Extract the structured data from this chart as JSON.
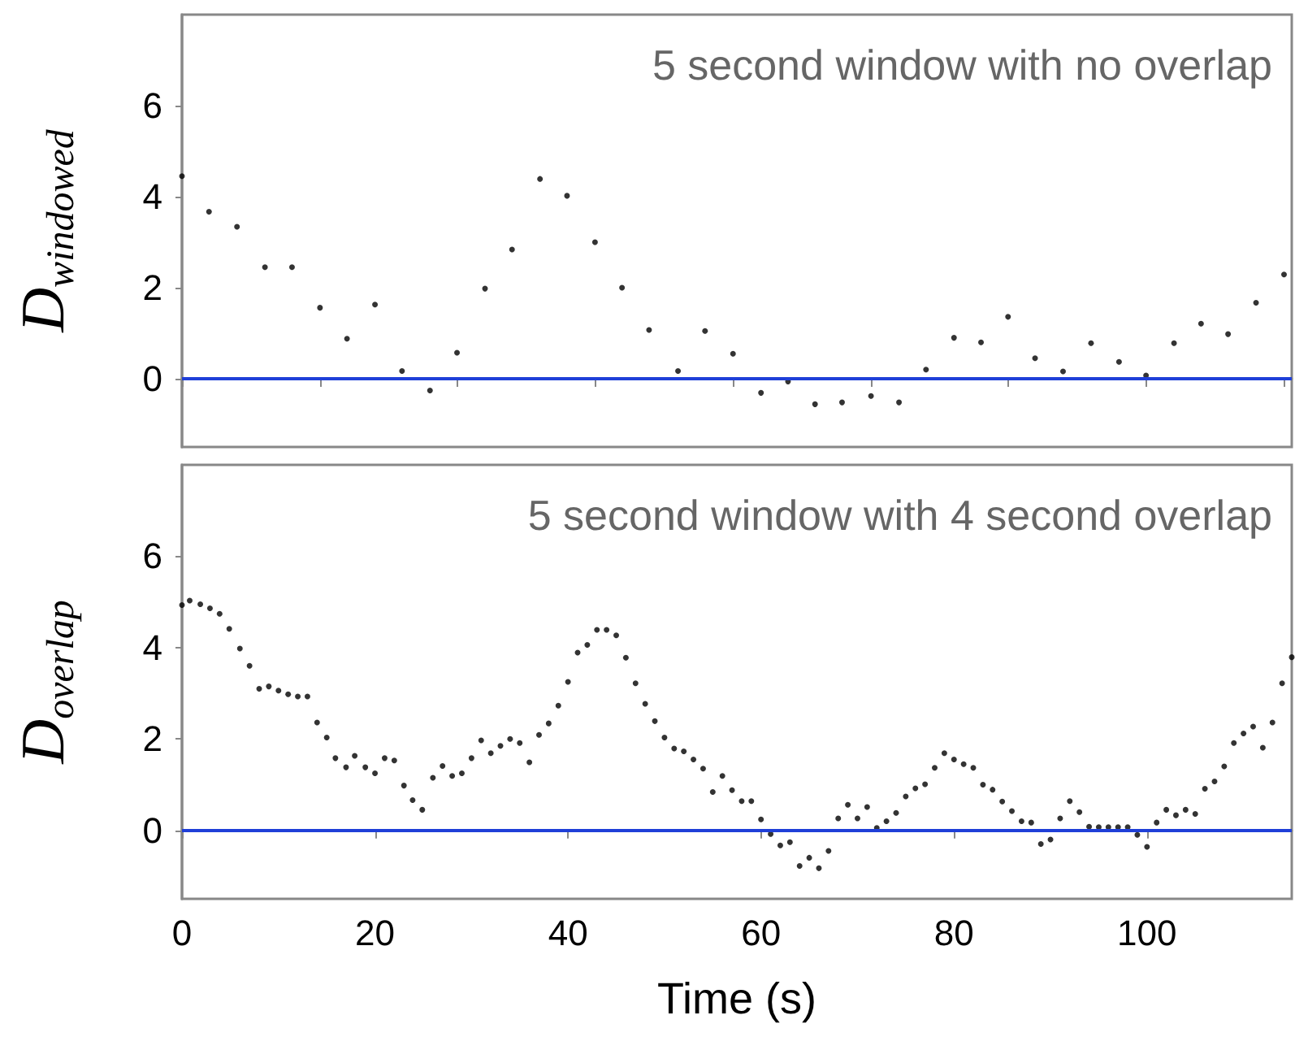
{
  "chart_data": [
    {
      "type": "scatter",
      "ylabel": "D$_{windowed}$",
      "annotations": [
        "5 second window with no overlap"
      ],
      "xlim": [
        0,
        115
      ],
      "xticks": [
        {
          "value": 0,
          "label": null
        },
        {
          "value": 14.3,
          "label": null
        },
        {
          "value": 28.5,
          "label": null
        },
        {
          "value": 42.8,
          "label": null
        },
        {
          "value": 57.1,
          "label": null
        },
        {
          "value": 71.4,
          "label": null
        },
        {
          "value": 85.6,
          "label": null
        },
        {
          "value": 99.9,
          "label": null
        },
        {
          "value": 114.2,
          "label": null
        }
      ],
      "ylim": [
        -1.5,
        8
      ],
      "yticks": [
        0,
        2,
        4,
        6
      ],
      "tick_labels": "y",
      "marker": "circle",
      "grid": false,
      "ref_lines": [
        {
          "axis": "y",
          "value": 0,
          "color": "#1f3fd8"
        }
      ],
      "series": [
        {
          "color": "#000000",
          "x": [
            0,
            2.8,
            5.7,
            8.6,
            11.4,
            14.3,
            17.1,
            20.0,
            22.8,
            25.7,
            28.5,
            31.4,
            34.2,
            37.1,
            39.9,
            42.8,
            45.6,
            48.4,
            51.4,
            54.2,
            57.1,
            60.0,
            62.8,
            65.6,
            68.4,
            71.4,
            74.3,
            77.1,
            80.0,
            82.8,
            85.6,
            88.4,
            91.3,
            94.2,
            97.1,
            99.9,
            102.8,
            105.6,
            108.4,
            111.3,
            114.2
          ],
          "values": [
            4.45,
            3.67,
            3.34,
            2.45,
            2.45,
            1.56,
            0.88,
            1.63,
            0.17,
            -0.26,
            0.57,
            1.98,
            2.84,
            4.39,
            4.02,
            3.0,
            2.0,
            1.07,
            0.17,
            1.05,
            0.55,
            -0.31,
            -0.06,
            -0.56,
            -0.52,
            -0.38,
            -0.52,
            0.2,
            0.9,
            0.8,
            1.36,
            0.45,
            0.16,
            0.78,
            0.37,
            0.07,
            0.78,
            1.21,
            0.98,
            1.67,
            2.29
          ]
        }
      ]
    },
    {
      "type": "scatter",
      "ylabel": "D$_{overlap}$",
      "xlabel": "Time (s)",
      "annotations": [
        "5 second window with 4 second overlap"
      ],
      "xlim": [
        0,
        115
      ],
      "xticks": [
        0,
        20,
        40,
        60,
        80,
        100
      ],
      "ylim": [
        -1.5,
        8
      ],
      "yticks": [
        0,
        2,
        4,
        6
      ],
      "marker": "circle",
      "grid": false,
      "ref_lines": [
        {
          "axis": "y",
          "value": 0,
          "color": "#1f3fd8"
        }
      ],
      "series": [
        {
          "color": "#000000",
          "x": [
            0,
            0.8,
            1.9,
            2.9,
            3.9,
            4.9,
            6.0,
            7.0,
            8.0,
            9.0,
            10.0,
            11.0,
            12.0,
            13.0,
            14.0,
            15.0,
            15.9,
            17.0,
            17.9,
            19.0,
            20.0,
            21.0,
            22.0,
            23.0,
            23.9,
            24.9,
            26.0,
            27.0,
            28.0,
            29.0,
            30.0,
            31.0,
            32.0,
            33.0,
            34.0,
            35.0,
            36.0,
            37.0,
            38.0,
            39.0,
            40.0,
            41.0,
            42.0,
            43.0,
            44.0,
            45.0,
            46.0,
            47.0,
            48.0,
            49.0,
            50.0,
            51.0,
            52.0,
            53.0,
            54.0,
            55.0,
            56.0,
            57.0,
            58.0,
            59.0,
            60.0,
            61.0,
            62.0,
            63.0,
            64.0,
            65.0,
            66.0,
            67.0,
            68.0,
            69.0,
            70.0,
            71.0,
            72.0,
            73.0,
            74.0,
            75.0,
            76.0,
            77.0,
            78.0,
            79.0,
            80.0,
            81.0,
            82.0,
            83.0,
            84.0,
            85.0,
            86.0,
            87.0,
            88.0,
            89.0,
            90.0,
            91.0,
            92.0,
            93.0,
            94.0,
            95.0,
            96.0,
            97.0,
            98.0,
            99.0,
            100.0,
            101.0,
            102.0,
            103.0,
            104.0,
            105.0,
            106.0,
            107.0,
            108.0,
            109.0,
            110.0,
            111.0,
            112.0,
            113.0,
            114.0,
            115.0
          ],
          "values": [
            4.93,
            5.03,
            4.95,
            4.86,
            4.74,
            4.41,
            3.98,
            3.6,
            3.1,
            3.15,
            3.06,
            2.98,
            2.93,
            2.93,
            2.36,
            2.03,
            1.58,
            1.38,
            1.63,
            1.38,
            1.25,
            1.58,
            1.53,
            0.98,
            0.66,
            0.45,
            1.15,
            1.41,
            1.19,
            1.25,
            1.58,
            1.97,
            1.69,
            1.85,
            2.0,
            1.91,
            1.49,
            2.09,
            2.34,
            2.73,
            3.25,
            3.89,
            4.06,
            4.39,
            4.39,
            4.27,
            3.78,
            3.22,
            2.77,
            2.39,
            2.03,
            1.79,
            1.73,
            1.55,
            1.35,
            0.84,
            1.19,
            0.88,
            0.64,
            0.64,
            0.24,
            -0.08,
            -0.33,
            -0.26,
            -0.78,
            -0.6,
            -0.83,
            -0.45,
            0.26,
            0.56,
            0.26,
            0.51,
            0.05,
            0.2,
            0.38,
            0.74,
            0.92,
            1.01,
            1.37,
            1.69,
            1.55,
            1.45,
            1.37,
            1.0,
            0.89,
            0.63,
            0.42,
            0.2,
            0.17,
            -0.3,
            -0.2,
            0.26,
            0.64,
            0.4,
            0.08,
            0.07,
            0.07,
            0.07,
            0.07,
            -0.1,
            -0.36,
            0.17,
            0.45,
            0.33,
            0.45,
            0.36,
            0.91,
            1.07,
            1.4,
            1.91,
            2.12,
            2.27,
            1.81,
            2.36,
            3.22,
            3.79
          ]
        }
      ]
    }
  ]
}
